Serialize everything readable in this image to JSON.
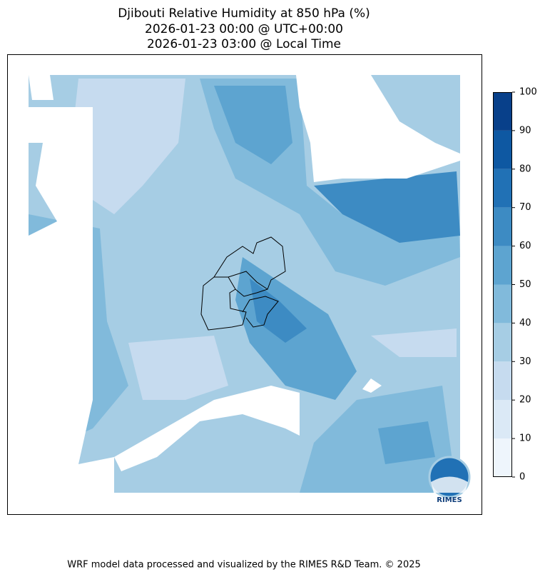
{
  "title": [
    "Djibouti Relative Humidity at 850 hPa (%)",
    "2026-01-23 00:00 @ UTC+00:00",
    "2026-01-23 03:00 @ Local Time"
  ],
  "colorbar": {
    "ticks": [
      0,
      10,
      20,
      30,
      40,
      50,
      60,
      70,
      80,
      90,
      100
    ],
    "colors": [
      "#eef5fc",
      "#dbe9f6",
      "#c6dbef",
      "#a6cde4",
      "#81badb",
      "#5da4d0",
      "#3d8bc3",
      "#2171b5",
      "#0e58a2",
      "#08408a"
    ]
  },
  "logo": "RIMES",
  "footer": "WRF model data processed and visualized by the RIMES R&D Team. © 2025"
}
